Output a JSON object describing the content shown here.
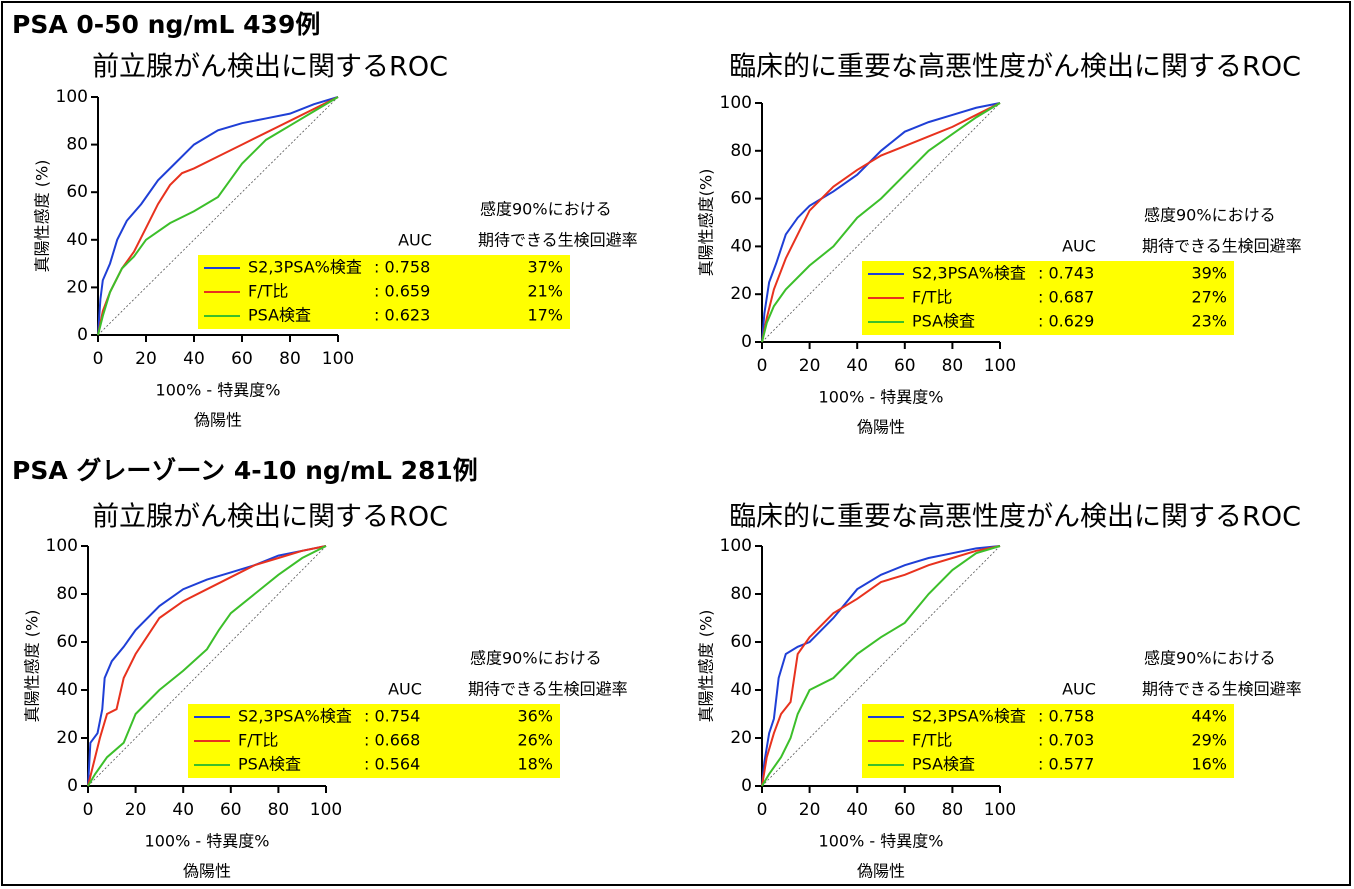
{
  "headings": [
    "PSA 0-50 ng/mL 439例",
    "PSA グレーゾーン 4-10 ng/mL 281例"
  ],
  "chart_data": [
    {
      "type": "line",
      "title": "前立腺がん検出に関するROC",
      "ylabel": "真陽性感度 (%)",
      "xlabel": "100% - 特異度%",
      "xlabel_sub": "偽陽性",
      "xlim": [
        0,
        100
      ],
      "ylim": [
        0,
        100
      ],
      "xticks": [
        0,
        20,
        40,
        60,
        80,
        100
      ],
      "yticks": [
        0,
        20,
        40,
        60,
        80,
        100
      ],
      "table_headers": [
        "AUC",
        "感度90%における",
        "期待できる生検回避率"
      ],
      "series": [
        {
          "name": "S2,3PSA%検査",
          "color": "#1f3fd6",
          "auc": ": 0.758",
          "avoidance": "37%",
          "x": [
            0,
            1,
            2,
            5,
            8,
            12,
            18,
            25,
            32,
            40,
            50,
            60,
            70,
            80,
            90,
            100
          ],
          "values": [
            0,
            15,
            23,
            30,
            40,
            48,
            55,
            65,
            72,
            80,
            86,
            89,
            91,
            93,
            97,
            100
          ]
        },
        {
          "name": "F/T比",
          "color": "#e8321e",
          "auc": ": 0.659",
          "avoidance": "21%",
          "x": [
            0,
            2,
            5,
            10,
            15,
            20,
            25,
            30,
            35,
            40,
            50,
            60,
            70,
            80,
            90,
            100
          ],
          "values": [
            0,
            10,
            18,
            28,
            35,
            45,
            55,
            63,
            68,
            70,
            75,
            80,
            85,
            90,
            95,
            100
          ]
        },
        {
          "name": "PSA検査",
          "color": "#3cbf2a",
          "auc": ": 0.623",
          "avoidance": "17%",
          "x": [
            0,
            2,
            5,
            10,
            15,
            20,
            30,
            40,
            50,
            55,
            60,
            70,
            80,
            90,
            100
          ],
          "values": [
            0,
            8,
            18,
            28,
            33,
            40,
            47,
            52,
            58,
            65,
            72,
            82,
            88,
            94,
            100
          ]
        }
      ]
    },
    {
      "type": "line",
      "title": "臨床的に重要な高悪性度がん検出に関するROC",
      "ylabel": "真陽性感度(%)",
      "xlabel": "100% - 特異度%",
      "xlabel_sub": "偽陽性",
      "xlim": [
        0,
        100
      ],
      "ylim": [
        0,
        100
      ],
      "xticks": [
        0,
        20,
        40,
        60,
        80,
        100
      ],
      "yticks": [
        0,
        20,
        40,
        60,
        80,
        100
      ],
      "table_headers": [
        "AUC",
        "感度90%における",
        "期待できる生検回避率"
      ],
      "series": [
        {
          "name": "S2,3PSA%検査",
          "color": "#1f3fd6",
          "auc": ": 0.743",
          "avoidance": "39%",
          "x": [
            0,
            1,
            3,
            6,
            10,
            15,
            20,
            30,
            40,
            50,
            60,
            70,
            80,
            90,
            100
          ],
          "values": [
            0,
            12,
            25,
            33,
            45,
            52,
            57,
            63,
            70,
            80,
            88,
            92,
            95,
            98,
            100
          ]
        },
        {
          "name": "F/T比",
          "color": "#e8321e",
          "auc": ": 0.687",
          "avoidance": "27%",
          "x": [
            0,
            2,
            5,
            10,
            15,
            20,
            30,
            40,
            50,
            60,
            70,
            80,
            90,
            100
          ],
          "values": [
            0,
            10,
            22,
            35,
            45,
            55,
            65,
            72,
            78,
            82,
            86,
            90,
            95,
            100
          ]
        },
        {
          "name": "PSA検査",
          "color": "#3cbf2a",
          "auc": ": 0.629",
          "avoidance": "23%",
          "x": [
            0,
            2,
            5,
            10,
            20,
            30,
            40,
            50,
            60,
            70,
            80,
            90,
            100
          ],
          "values": [
            0,
            8,
            15,
            22,
            32,
            40,
            52,
            60,
            70,
            80,
            87,
            94,
            100
          ]
        }
      ]
    },
    {
      "type": "line",
      "title": "前立腺がん検出に関するROC",
      "ylabel": "真陽性感度 (%)",
      "xlabel": "100% - 特異度%",
      "xlabel_sub": "偽陽性",
      "xlim": [
        0,
        100
      ],
      "ylim": [
        0,
        100
      ],
      "xticks": [
        0,
        20,
        40,
        60,
        80,
        100
      ],
      "yticks": [
        0,
        20,
        40,
        60,
        80,
        100
      ],
      "table_headers": [
        "AUC",
        "感度90%における",
        "期待できる生検回避率"
      ],
      "series": [
        {
          "name": "S2,3PSA%検査",
          "color": "#1f3fd6",
          "auc": ": 0.754",
          "avoidance": "36%",
          "x": [
            0,
            1,
            4,
            6,
            7,
            10,
            15,
            20,
            30,
            40,
            50,
            60,
            70,
            80,
            90,
            100
          ],
          "values": [
            0,
            18,
            22,
            32,
            45,
            52,
            58,
            65,
            75,
            82,
            86,
            89,
            92,
            96,
            98,
            100
          ]
        },
        {
          "name": "F/T比",
          "color": "#e8321e",
          "auc": ": 0.668",
          "avoidance": "26%",
          "x": [
            0,
            2,
            5,
            8,
            12,
            15,
            20,
            30,
            40,
            50,
            60,
            70,
            80,
            90,
            100
          ],
          "values": [
            0,
            8,
            20,
            30,
            32,
            45,
            55,
            70,
            77,
            82,
            87,
            92,
            95,
            98,
            100
          ]
        },
        {
          "name": "PSA検査",
          "color": "#3cbf2a",
          "auc": ": 0.564",
          "avoidance": "18%",
          "x": [
            0,
            3,
            8,
            15,
            20,
            30,
            40,
            50,
            55,
            60,
            70,
            80,
            90,
            100
          ],
          "values": [
            0,
            5,
            12,
            18,
            30,
            40,
            48,
            57,
            65,
            72,
            80,
            88,
            95,
            100
          ]
        }
      ]
    },
    {
      "type": "line",
      "title": "臨床的に重要な高悪性度がん検出に関するROC",
      "ylabel": "真陽性感度 (%)",
      "xlabel": "100% - 特異度%",
      "xlabel_sub": "偽陽性",
      "xlim": [
        0,
        100
      ],
      "ylim": [
        0,
        100
      ],
      "xticks": [
        0,
        20,
        40,
        60,
        80,
        100
      ],
      "yticks": [
        0,
        20,
        40,
        60,
        80,
        100
      ],
      "table_headers": [
        "AUC",
        "感度90%における",
        "期待できる生検回避率"
      ],
      "series": [
        {
          "name": "S2,3PSA%検査",
          "color": "#1f3fd6",
          "auc": ": 0.758",
          "avoidance": "44%",
          "x": [
            0,
            1,
            3,
            5,
            7,
            10,
            15,
            20,
            30,
            40,
            50,
            60,
            70,
            80,
            90,
            100
          ],
          "values": [
            0,
            10,
            22,
            28,
            45,
            55,
            58,
            60,
            70,
            82,
            88,
            92,
            95,
            97,
            99,
            100
          ]
        },
        {
          "name": "F/T比",
          "color": "#e8321e",
          "auc": ": 0.703",
          "avoidance": "29%",
          "x": [
            0,
            2,
            5,
            8,
            12,
            15,
            20,
            30,
            40,
            50,
            60,
            70,
            80,
            90,
            100
          ],
          "values": [
            0,
            12,
            22,
            30,
            35,
            55,
            62,
            72,
            78,
            85,
            88,
            92,
            95,
            98,
            100
          ]
        },
        {
          "name": "PSA検査",
          "color": "#3cbf2a",
          "auc": ": 0.577",
          "avoidance": "16%",
          "x": [
            0,
            3,
            8,
            12,
            15,
            20,
            30,
            40,
            50,
            60,
            70,
            80,
            90,
            100
          ],
          "values": [
            0,
            5,
            12,
            20,
            30,
            40,
            45,
            55,
            62,
            68,
            80,
            90,
            97,
            100
          ]
        }
      ]
    }
  ]
}
